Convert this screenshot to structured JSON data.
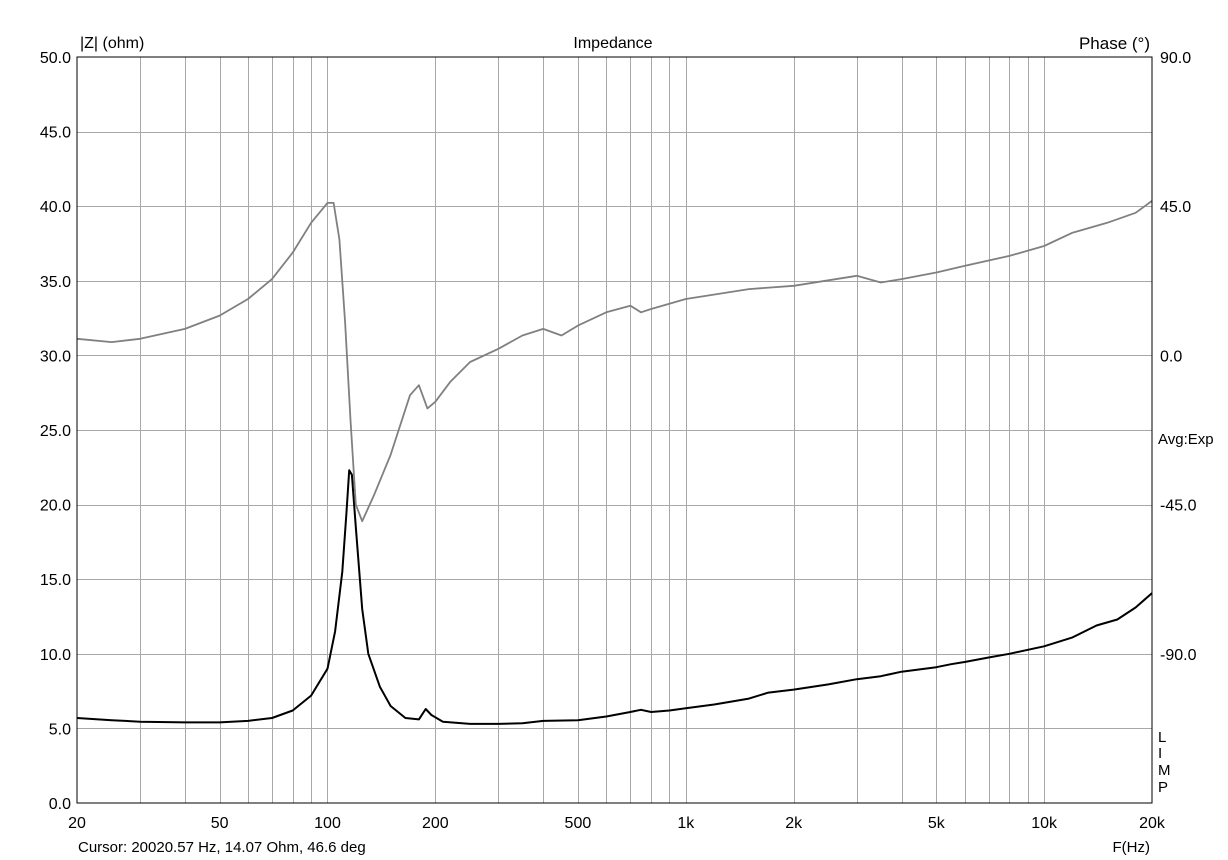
{
  "chart_data": {
    "type": "line",
    "title": "Impedance",
    "ylabel": "|Z| (ohm)",
    "y2label": "Phase (°)",
    "xlabel": "F(Hz)",
    "xscale": "log",
    "xlim": [
      20,
      20000
    ],
    "ylim": [
      0,
      50
    ],
    "y2lim": [
      -135,
      90
    ],
    "grid": true,
    "x_ticks": [
      {
        "value": 20,
        "label": "20"
      },
      {
        "value": 50,
        "label": "50"
      },
      {
        "value": 100,
        "label": "100"
      },
      {
        "value": 200,
        "label": "200"
      },
      {
        "value": 500,
        "label": "500"
      },
      {
        "value": 1000,
        "label": "1k"
      },
      {
        "value": 2000,
        "label": "2k"
      },
      {
        "value": 5000,
        "label": "5k"
      },
      {
        "value": 10000,
        "label": "10k"
      },
      {
        "value": 20000,
        "label": "20k"
      }
    ],
    "y_ticks": [
      {
        "value": 0,
        "label": "0.0"
      },
      {
        "value": 5,
        "label": "5.0"
      },
      {
        "value": 10,
        "label": "10.0"
      },
      {
        "value": 15,
        "label": "15.0"
      },
      {
        "value": 20,
        "label": "20.0"
      },
      {
        "value": 25,
        "label": "25.0"
      },
      {
        "value": 30,
        "label": "30.0"
      },
      {
        "value": 35,
        "label": "35.0"
      },
      {
        "value": 40,
        "label": "40.0"
      },
      {
        "value": 45,
        "label": "45.0"
      },
      {
        "value": 50,
        "label": "50.0"
      }
    ],
    "y2_ticks": [
      {
        "value": 90,
        "label": "90.0"
      },
      {
        "value": 45,
        "label": "45.0"
      },
      {
        "value": 0,
        "label": "0.0"
      },
      {
        "value": -45,
        "label": "-45.0"
      },
      {
        "value": -90,
        "label": "-90.0"
      }
    ],
    "annotations": {
      "avg": "Avg:Exp",
      "limp": [
        "L",
        "I",
        "M",
        "P"
      ],
      "cursor": "Cursor: 20020.57 Hz, 14.07 Ohm, 46.6 deg"
    },
    "series": [
      {
        "axis": "left",
        "color": "#000000",
        "points": [
          [
            20,
            5.7
          ],
          [
            25,
            5.55
          ],
          [
            30,
            5.45
          ],
          [
            40,
            5.4
          ],
          [
            50,
            5.4
          ],
          [
            60,
            5.5
          ],
          [
            70,
            5.7
          ],
          [
            80,
            6.2
          ],
          [
            90,
            7.2
          ],
          [
            100,
            9.0
          ],
          [
            105,
            11.5
          ],
          [
            110,
            15.5
          ],
          [
            113,
            19.5
          ],
          [
            115,
            22.3
          ],
          [
            117,
            22.0
          ],
          [
            120,
            18.5
          ],
          [
            125,
            13.0
          ],
          [
            130,
            10.0
          ],
          [
            140,
            7.8
          ],
          [
            150,
            6.5
          ],
          [
            165,
            5.7
          ],
          [
            180,
            5.6
          ],
          [
            188,
            6.3
          ],
          [
            195,
            5.9
          ],
          [
            210,
            5.45
          ],
          [
            250,
            5.3
          ],
          [
            300,
            5.3
          ],
          [
            350,
            5.35
          ],
          [
            400,
            5.5
          ],
          [
            500,
            5.55
          ],
          [
            600,
            5.8
          ],
          [
            700,
            6.1
          ],
          [
            750,
            6.25
          ],
          [
            800,
            6.1
          ],
          [
            900,
            6.2
          ],
          [
            1000,
            6.35
          ],
          [
            1200,
            6.6
          ],
          [
            1500,
            7.0
          ],
          [
            1700,
            7.4
          ],
          [
            2000,
            7.6
          ],
          [
            2500,
            7.95
          ],
          [
            3000,
            8.3
          ],
          [
            3500,
            8.5
          ],
          [
            4000,
            8.8
          ],
          [
            5000,
            9.1
          ],
          [
            5500,
            9.3
          ],
          [
            6000,
            9.45
          ],
          [
            7000,
            9.75
          ],
          [
            8000,
            10.0
          ],
          [
            10000,
            10.5
          ],
          [
            12000,
            11.1
          ],
          [
            14000,
            11.9
          ],
          [
            16000,
            12.3
          ],
          [
            18000,
            13.1
          ],
          [
            20000,
            14.07
          ]
        ]
      },
      {
        "axis": "right",
        "color": "#808080",
        "points": [
          [
            20,
            5
          ],
          [
            25,
            4
          ],
          [
            30,
            5
          ],
          [
            40,
            8
          ],
          [
            50,
            12
          ],
          [
            60,
            17
          ],
          [
            70,
            23
          ],
          [
            80,
            31
          ],
          [
            90,
            40
          ],
          [
            100,
            46
          ],
          [
            104,
            46
          ],
          [
            108,
            35
          ],
          [
            112,
            10
          ],
          [
            116,
            -20
          ],
          [
            120,
            -45
          ],
          [
            125,
            -50
          ],
          [
            135,
            -42
          ],
          [
            150,
            -30
          ],
          [
            170,
            -12
          ],
          [
            180,
            -9
          ],
          [
            190,
            -16
          ],
          [
            200,
            -14
          ],
          [
            220,
            -8
          ],
          [
            250,
            -2
          ],
          [
            300,
            2
          ],
          [
            350,
            6
          ],
          [
            400,
            8
          ],
          [
            450,
            6
          ],
          [
            500,
            9
          ],
          [
            600,
            13
          ],
          [
            700,
            15
          ],
          [
            750,
            13
          ],
          [
            800,
            14
          ],
          [
            1000,
            17
          ],
          [
            1500,
            20
          ],
          [
            2000,
            21
          ],
          [
            3000,
            24
          ],
          [
            3500,
            22
          ],
          [
            4000,
            23
          ],
          [
            5000,
            25
          ],
          [
            6000,
            27
          ],
          [
            8000,
            30
          ],
          [
            10000,
            33
          ],
          [
            12000,
            37
          ],
          [
            15000,
            40
          ],
          [
            18000,
            43
          ],
          [
            20000,
            46.6
          ]
        ]
      }
    ]
  }
}
